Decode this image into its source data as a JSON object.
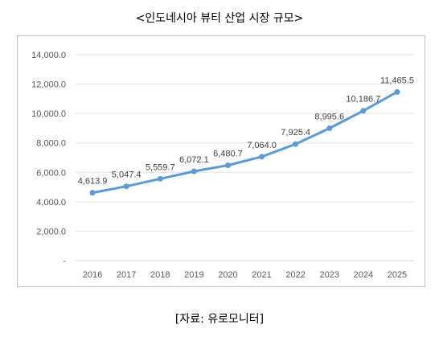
{
  "chart_data": {
    "type": "line",
    "title": "<인도네시아 뷰티 산업 시장 규모>",
    "source": "[자료: 유로모니터]",
    "categories": [
      "2016",
      "2017",
      "2018",
      "2019",
      "2020",
      "2021",
      "2022",
      "2023",
      "2024",
      "2025"
    ],
    "series": [
      {
        "values": [
          4613.9,
          5047.4,
          5559.7,
          6072.1,
          6480.7,
          7064.0,
          7925.4,
          8995.6,
          10186.7,
          11465.5
        ],
        "value_labels": [
          "4,613.9",
          "5,047.4",
          "5,559.7",
          "6,072.1",
          "6,480.7",
          "7,064.0",
          "7,925.4",
          "8,995.6",
          "10,186.7",
          "11,465.5"
        ],
        "color": "#5b9bd5"
      }
    ],
    "ylim": [
      0,
      14000
    ],
    "yticks": [
      0,
      2000,
      4000,
      6000,
      8000,
      10000,
      12000,
      14000
    ],
    "ytick_labels": [
      "-",
      "2,000.0",
      "4,000.0",
      "6,000.0",
      "8,000.0",
      "10,000.0",
      "12,000.0",
      "14,000.0"
    ],
    "grid": true,
    "legend": "none"
  }
}
